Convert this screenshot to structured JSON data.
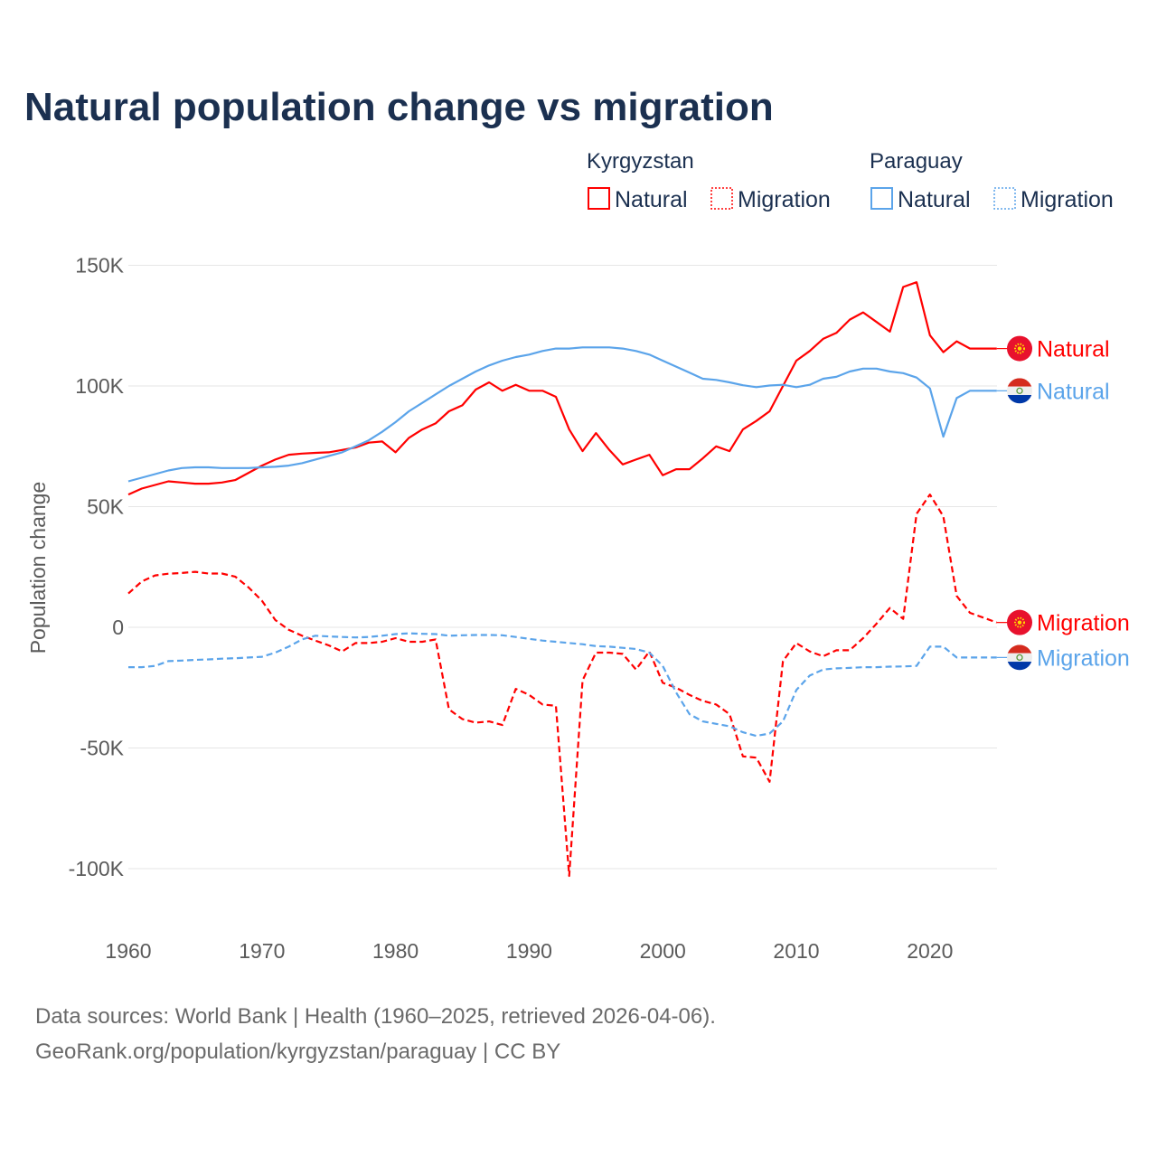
{
  "colors": {
    "kyrgyzstan": "#ff0000",
    "paraguay": "#5ba4ea",
    "title": "#1b3050",
    "grid": "#e6e6e6"
  },
  "chart_data": {
    "type": "line",
    "title": "Natural population change vs migration",
    "xlabel": "",
    "ylabel": "Population change",
    "xlim": [
      1960,
      2025
    ],
    "ylim": [
      -115000,
      155000
    ],
    "grid": true,
    "x_ticks": [
      1960,
      1970,
      1980,
      1990,
      2000,
      2010,
      2020
    ],
    "x_tick_labels": [
      "1960",
      "1970",
      "1980",
      "1990",
      "2000",
      "2010",
      "2020"
    ],
    "y_ticks": [
      150000,
      100000,
      50000,
      0,
      -50000,
      -100000
    ],
    "y_tick_labels": [
      "150K",
      "100K",
      "50K",
      "0",
      "-50K",
      "-100K"
    ],
    "legend": {
      "placement": "top-right",
      "groups": [
        {
          "country": "Kyrgyzstan",
          "items": [
            "Natural",
            "Migration"
          ]
        },
        {
          "country": "Paraguay",
          "items": [
            "Natural",
            "Migration"
          ]
        }
      ]
    },
    "x_start": 1960,
    "series": [
      {
        "name": "Kyrgyzstan Natural",
        "country": "Kyrgyzstan",
        "kind": "Natural",
        "end_label": "Natural",
        "style": "solid",
        "values": [
          55000,
          57500,
          59000,
          60500,
          60000,
          59500,
          59500,
          60000,
          61000,
          64000,
          67000,
          69500,
          71500,
          72000,
          72300,
          72500,
          73500,
          74500,
          76500,
          77000,
          72500,
          78500,
          82000,
          84500,
          89500,
          92000,
          98500,
          101500,
          98000,
          100500,
          98000,
          98000,
          95500,
          82000,
          73000,
          80500,
          73500,
          67500,
          69500,
          71500,
          63000,
          65500,
          65500,
          70000,
          75000,
          73000,
          82000,
          85500,
          89500,
          100000,
          110500,
          114500,
          119500,
          122000,
          127500,
          130500,
          126500,
          122500,
          141000,
          143000,
          121000,
          114000,
          118500,
          115500,
          115500,
          115500
        ]
      },
      {
        "name": "Kyrgyzstan Migration",
        "country": "Kyrgyzstan",
        "kind": "Migration",
        "end_label": "Migration",
        "style": "dashed",
        "values": [
          14000,
          19000,
          21500,
          22200,
          22500,
          23000,
          22300,
          22300,
          21000,
          16500,
          11000,
          3000,
          -1000,
          -3500,
          -5500,
          -7500,
          -10000,
          -6500,
          -6500,
          -6000,
          -4500,
          -6000,
          -6000,
          -5000,
          -34000,
          -38000,
          -39500,
          -39000,
          -40500,
          -25500,
          -28000,
          -32000,
          -32500,
          -103000,
          -22000,
          -10500,
          -10500,
          -11000,
          -17500,
          -10000,
          -23000,
          -25000,
          -28000,
          -30500,
          -32000,
          -36000,
          -53500,
          -54000,
          -64000,
          -14000,
          -6500,
          -10000,
          -12000,
          -9500,
          -9500,
          -4500,
          1500,
          8000,
          3500,
          47000,
          55000,
          46000,
          13000,
          6000,
          4000,
          2000
        ]
      },
      {
        "name": "Paraguay Natural",
        "country": "Paraguay",
        "kind": "Natural",
        "end_label": "Natural",
        "style": "solid",
        "values": [
          60500,
          62000,
          63500,
          65000,
          66000,
          66300,
          66300,
          66000,
          66000,
          66000,
          66300,
          66500,
          67000,
          68000,
          69500,
          71000,
          72500,
          75000,
          77500,
          81000,
          85000,
          89500,
          93000,
          96500,
          100000,
          103000,
          106000,
          108500,
          110500,
          112000,
          113000,
          114500,
          115500,
          115500,
          116000,
          116000,
          116000,
          115500,
          114500,
          113000,
          110500,
          108000,
          105500,
          103000,
          102500,
          101500,
          100300,
          99500,
          100200,
          100500,
          99500,
          100500,
          103000,
          103800,
          106000,
          107200,
          107200,
          106000,
          105300,
          103500,
          99000,
          79000,
          95000,
          98000,
          98000,
          98000
        ]
      },
      {
        "name": "Paraguay Migration",
        "country": "Paraguay",
        "kind": "Migration",
        "end_label": "Migration",
        "style": "dashed",
        "values": [
          -16500,
          -16500,
          -16000,
          -14000,
          -13800,
          -13500,
          -13300,
          -13000,
          -12800,
          -12500,
          -12200,
          -10500,
          -8000,
          -5000,
          -3500,
          -3800,
          -4000,
          -4200,
          -4000,
          -3500,
          -2800,
          -2500,
          -2700,
          -2800,
          -3500,
          -3300,
          -3200,
          -3200,
          -3300,
          -4000,
          -4800,
          -5500,
          -6000,
          -6500,
          -7000,
          -7800,
          -8000,
          -8500,
          -9000,
          -10500,
          -16000,
          -27000,
          -36000,
          -39000,
          -40000,
          -41000,
          -43500,
          -45000,
          -44000,
          -39000,
          -26000,
          -20000,
          -17500,
          -17000,
          -16800,
          -16500,
          -16500,
          -16300,
          -16200,
          -16000,
          -8000,
          -8000,
          -12500,
          -12500,
          -12500,
          -12500
        ]
      }
    ],
    "footer": [
      "Data sources: World Bank | Health (1960–2025, retrieved 2026-04-06).",
      "GeoRank.org/population/kyrgyzstan/paraguay | CC BY"
    ]
  }
}
